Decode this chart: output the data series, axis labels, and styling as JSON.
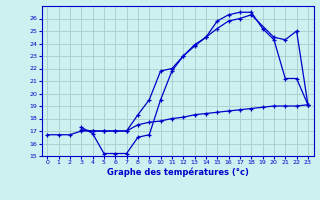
{
  "title": "Graphe des températures (°c)",
  "bg_color": "#cdf0f0",
  "grid_color": "#aacccc",
  "line_color": "#0000cc",
  "ylim": [
    15,
    27
  ],
  "xlim": [
    -0.5,
    23.5
  ],
  "yticks": [
    15,
    16,
    17,
    18,
    19,
    20,
    21,
    22,
    23,
    24,
    25,
    26
  ],
  "xticks": [
    0,
    1,
    2,
    3,
    4,
    5,
    6,
    7,
    8,
    9,
    10,
    11,
    12,
    13,
    14,
    15,
    16,
    17,
    18,
    19,
    20,
    21,
    22,
    23
  ],
  "series1_x": [
    0,
    1,
    2,
    3,
    4,
    5,
    6,
    7,
    8,
    9,
    10,
    11,
    12,
    13,
    14,
    15,
    16,
    17,
    18,
    19,
    20,
    21,
    22,
    23
  ],
  "series1_y": [
    16.7,
    16.7,
    16.7,
    17.0,
    17.0,
    17.0,
    17.0,
    17.0,
    17.5,
    17.7,
    17.8,
    18.0,
    18.1,
    18.3,
    18.4,
    18.5,
    18.6,
    18.7,
    18.8,
    18.9,
    19.0,
    19.0,
    19.0,
    19.1
  ],
  "series2_x": [
    3,
    4,
    5,
    6,
    7,
    8,
    9,
    10,
    11,
    12,
    13,
    14,
    15,
    16,
    17,
    18,
    20,
    21,
    22,
    23
  ],
  "series2_y": [
    17.1,
    17.0,
    17.0,
    17.0,
    17.0,
    18.3,
    19.5,
    21.8,
    22.0,
    23.0,
    23.8,
    24.5,
    25.2,
    25.8,
    26.0,
    26.3,
    24.5,
    24.3,
    25.0,
    19.1
  ],
  "series3_x": [
    3,
    4,
    5,
    6,
    7,
    8,
    9,
    10,
    11,
    12,
    13,
    14,
    15,
    16,
    17,
    18,
    19,
    20,
    21,
    22,
    23
  ],
  "series3_y": [
    17.3,
    16.8,
    15.2,
    15.2,
    15.2,
    16.5,
    16.7,
    19.5,
    21.8,
    23.0,
    23.9,
    24.5,
    25.8,
    26.3,
    26.5,
    26.5,
    25.2,
    24.3,
    21.2,
    21.2,
    19.1
  ]
}
